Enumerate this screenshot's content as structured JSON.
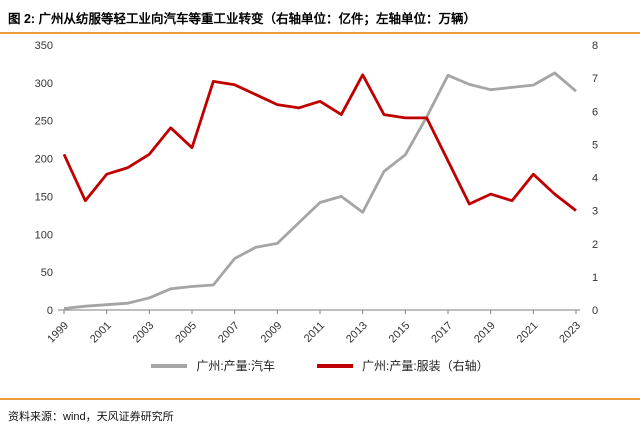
{
  "header": {
    "title": "图 2: 广州从纺服等轻工业向汽车等重工业转变（右轴单位：亿件；左轴单位：万辆）"
  },
  "footer": {
    "source": "资料来源：wind，天风证券研究所"
  },
  "colors": {
    "accent_rule": "#E99C3F",
    "auto_series": "#A5A5A5",
    "apparel_series": "#C00000",
    "axis_line": "#7F7F7F"
  },
  "chart_data": {
    "type": "line",
    "title": "图 2: 广州从纺服等轻工业向汽车等重工业转变",
    "grid": false,
    "legend_position": "bottom",
    "x": [
      1999,
      2000,
      2001,
      2002,
      2003,
      2004,
      2005,
      2006,
      2007,
      2008,
      2009,
      2010,
      2011,
      2012,
      2013,
      2014,
      2015,
      2016,
      2017,
      2018,
      2019,
      2020,
      2021,
      2022,
      2023
    ],
    "x_tick_labels": [
      1999,
      2001,
      2003,
      2005,
      2007,
      2009,
      2011,
      2013,
      2015,
      2017,
      2019,
      2021,
      2023
    ],
    "left_axis": {
      "min": 0,
      "max": 350,
      "ticks": [
        0,
        50,
        100,
        150,
        200,
        250,
        300,
        350
      ],
      "unit": "万辆"
    },
    "right_axis": {
      "min": 0,
      "max": 8,
      "ticks": [
        0,
        1,
        2,
        3,
        4,
        5,
        6,
        7,
        8
      ],
      "unit": "亿件"
    },
    "series": [
      {
        "name": "广州:产量:汽车",
        "axis": "left",
        "color": "#A5A5A5",
        "values": [
          2,
          5,
          7,
          9,
          16,
          28,
          31,
          33,
          68,
          83,
          88,
          115,
          142,
          150,
          129,
          183,
          205,
          255,
          310,
          298,
          291,
          294,
          297,
          313,
          289
        ]
      },
      {
        "name": "广州:产量:服装（右轴）",
        "axis": "right",
        "color": "#C00000",
        "values": [
          4.7,
          3.3,
          4.1,
          4.3,
          4.7,
          5.5,
          4.9,
          6.9,
          6.8,
          6.5,
          6.2,
          6.1,
          6.3,
          5.9,
          7.1,
          5.9,
          5.8,
          5.8,
          4.5,
          3.2,
          3.5,
          3.3,
          4.1,
          3.5,
          3.0
        ]
      }
    ]
  }
}
